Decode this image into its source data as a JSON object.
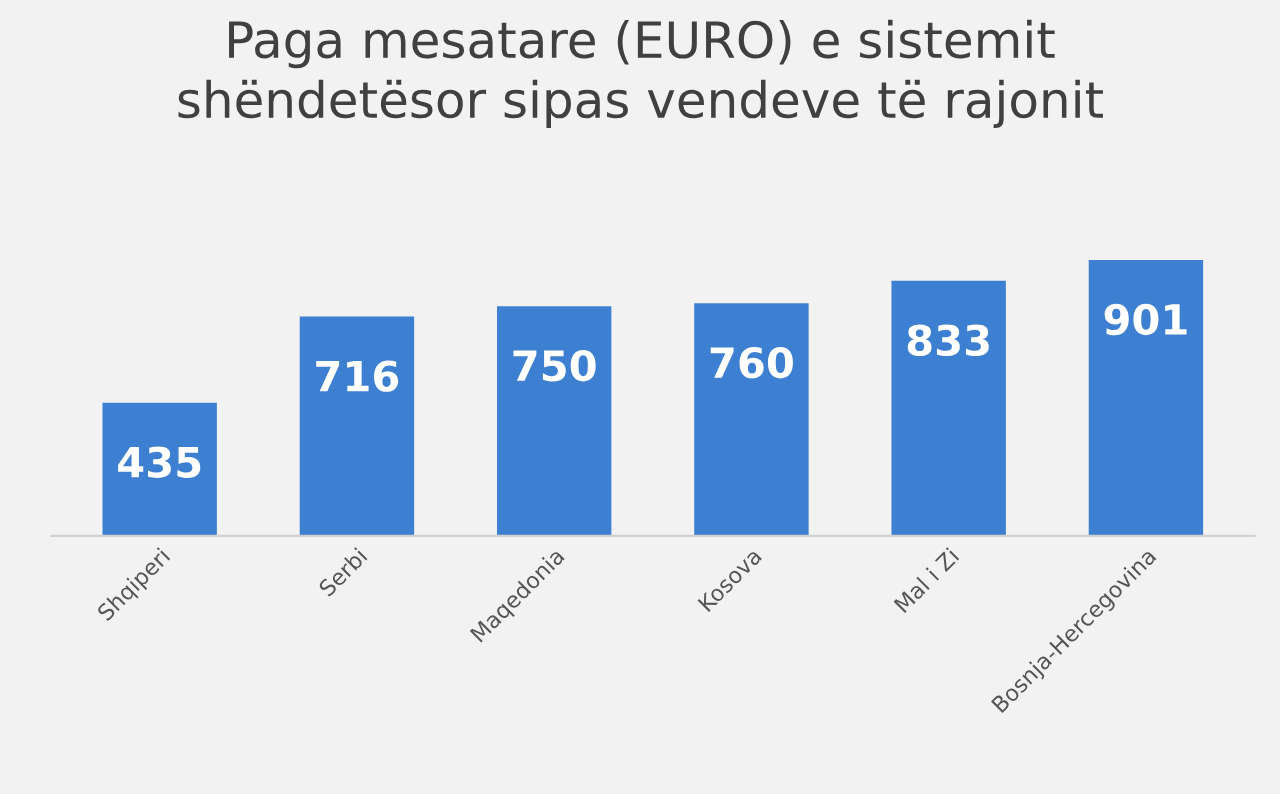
{
  "chart_data": {
    "type": "bar",
    "title": "Paga mesatare (EURO) e sistemit\nshëndetësor sipas vendeve të rajonit",
    "categories": [
      "Shqiperi",
      "Serbi",
      "Maqedonia",
      "Kosova",
      "Mal i Zi",
      "Bosnja-Hercegovina"
    ],
    "values": [
      435,
      716,
      750,
      760,
      833,
      901
    ],
    "color": "#3d7fd0",
    "data_labels": true,
    "grid": false,
    "legend": false
  }
}
